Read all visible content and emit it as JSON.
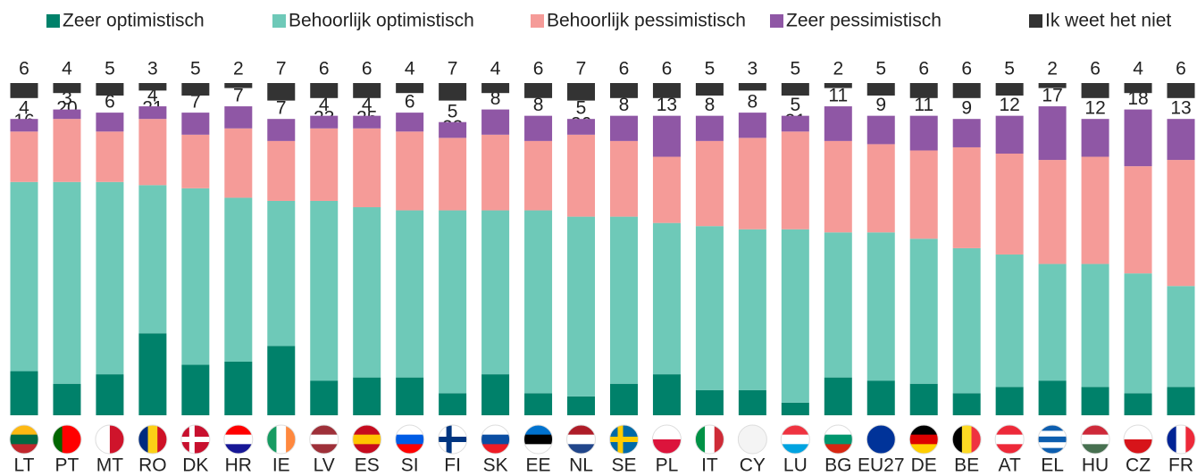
{
  "chart_data": {
    "type": "stacked_bar",
    "categories": [
      "LT",
      "PT",
      "MT",
      "RO",
      "DK",
      "HR",
      "IE",
      "LV",
      "ES",
      "SI",
      "FI",
      "SK",
      "EE",
      "NL",
      "SE",
      "PL",
      "IT",
      "CY",
      "LU",
      "BG",
      "EU27",
      "DE",
      "BE",
      "AT",
      "EL",
      "HU",
      "CZ",
      "FR"
    ],
    "series": [
      {
        "name": "Zeer optimistisch",
        "color": "#00816a",
        "values": [
          14,
          10,
          13,
          26,
          16,
          17,
          22,
          11,
          12,
          12,
          7,
          13,
          7,
          6,
          10,
          13,
          8,
          8,
          4,
          12,
          11,
          10,
          7,
          9,
          11,
          9,
          7,
          9
        ]
      },
      {
        "name": "Behoorlijk optimistisch",
        "color": "#6ec9b8",
        "values": [
          60,
          64,
          61,
          47,
          56,
          52,
          46,
          57,
          54,
          53,
          58,
          52,
          58,
          57,
          53,
          48,
          52,
          51,
          55,
          46,
          47,
          46,
          46,
          42,
          37,
          39,
          38,
          32
        ]
      },
      {
        "name": "Behoorlijk pessimistisch",
        "color": "#f59b98",
        "values": [
          16,
          20,
          16,
          21,
          17,
          22,
          19,
          23,
          25,
          25,
          23,
          24,
          22,
          26,
          24,
          21,
          27,
          29,
          31,
          29,
          28,
          28,
          32,
          32,
          33,
          34,
          34,
          40
        ]
      },
      {
        "name": "Zeer pessimistisch",
        "color": "#8f57a5",
        "values": [
          4,
          3,
          6,
          4,
          7,
          7,
          7,
          4,
          4,
          6,
          5,
          8,
          8,
          5,
          8,
          13,
          8,
          8,
          5,
          11,
          9,
          11,
          9,
          12,
          17,
          12,
          18,
          13
        ]
      },
      {
        "name": "Ik weet het niet",
        "color": "#333333",
        "values": [
          6,
          4,
          5,
          3,
          5,
          2,
          7,
          6,
          6,
          4,
          7,
          4,
          6,
          7,
          6,
          6,
          5,
          3,
          5,
          2,
          5,
          6,
          6,
          5,
          2,
          6,
          4,
          6
        ]
      }
    ]
  }
}
